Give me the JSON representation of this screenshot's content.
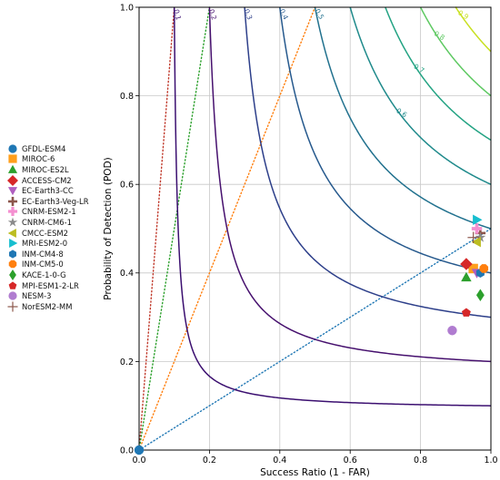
{
  "chart_data": {
    "type": "scatter",
    "title": "",
    "xlabel": "Success Ratio (1 - FAR)",
    "ylabel": "Probability of Detection (POD)",
    "xlim": [
      0.0,
      1.0
    ],
    "ylim": [
      0.0,
      1.0
    ],
    "xticks": [
      "0.0",
      "0.2",
      "0.4",
      "0.6",
      "0.8",
      "1.0"
    ],
    "yticks": [
      "0.0",
      "0.2",
      "0.4",
      "0.6",
      "0.8",
      "1.0"
    ],
    "grid": true,
    "legend_position": "left",
    "csi_contours": [
      {
        "level": 0.1,
        "label": "0.1",
        "color": "#3b0f70"
      },
      {
        "level": 0.2,
        "label": "0.2",
        "color": "#46106e"
      },
      {
        "level": 0.3,
        "label": "0.3",
        "color": "#2d3f8a"
      },
      {
        "level": 0.4,
        "label": "0.4",
        "color": "#26598d"
      },
      {
        "level": 0.5,
        "label": "0.5",
        "color": "#21718e"
      },
      {
        "level": 0.6,
        "label": "0.6",
        "color": "#1f8a8b"
      },
      {
        "level": 0.7,
        "label": "0.7",
        "color": "#23a383"
      },
      {
        "level": 0.8,
        "label": "0.8",
        "color": "#5ec962"
      },
      {
        "level": 0.9,
        "label": "0.9",
        "color": "#c8e020"
      }
    ],
    "bias_lines": [
      {
        "bias": 10,
        "color": "#c0392b"
      },
      {
        "bias": 5,
        "color": "#2ca02c"
      },
      {
        "bias": 2,
        "color": "#ff7f0e"
      },
      {
        "bias": 0.5,
        "color": "#1f77b4"
      }
    ],
    "series": [
      {
        "name": "GFDL-ESM4",
        "marker": "circle",
        "color": "#1f77b4",
        "x": 0.0,
        "y": 0.0
      },
      {
        "name": "MIROC-6",
        "marker": "square",
        "color": "#ff9f1c",
        "x": 0.95,
        "y": 0.41
      },
      {
        "name": "MIROC-ES2L",
        "marker": "triangle-up",
        "color": "#2ca02c",
        "x": 0.93,
        "y": 0.39
      },
      {
        "name": "ACCESS-CM2",
        "marker": "diamond",
        "color": "#d62728",
        "x": 0.93,
        "y": 0.42
      },
      {
        "name": "EC-Earth3-CC",
        "marker": "triangle-down",
        "color": "#b05fc0",
        "x": 0.96,
        "y": 0.4
      },
      {
        "name": "EC-Earth3-Veg-LR",
        "marker": "plus",
        "color": "#8c564b",
        "x": 0.97,
        "y": 0.49
      },
      {
        "name": "CNRM-ESM2-1",
        "marker": "plus-filled",
        "color": "#f48fd0",
        "x": 0.96,
        "y": 0.5
      },
      {
        "name": "CNRM-CM6-1",
        "marker": "star",
        "color": "#8a8a8a",
        "x": 0.97,
        "y": 0.48
      },
      {
        "name": "CMCC-ESM2",
        "marker": "triangle-left",
        "color": "#bcbd22",
        "x": 0.96,
        "y": 0.47
      },
      {
        "name": "MRI-ESM2-0",
        "marker": "triangle-right",
        "color": "#17becf",
        "x": 0.96,
        "y": 0.52
      },
      {
        "name": "INM-CM4-8",
        "marker": "hexagon",
        "color": "#1f77b4",
        "x": 0.97,
        "y": 0.4
      },
      {
        "name": "INM-CM5-0",
        "marker": "octagon",
        "color": "#ff7f0e",
        "x": 0.98,
        "y": 0.41
      },
      {
        "name": "KACE-1-0-G",
        "marker": "thin-diamond",
        "color": "#2ca02c",
        "x": 0.97,
        "y": 0.35
      },
      {
        "name": "MPI-ESM1-2-LR",
        "marker": "pentagon",
        "color": "#d62728",
        "x": 0.93,
        "y": 0.31
      },
      {
        "name": "NESM-3",
        "marker": "circle",
        "color": "#b07cd0",
        "x": 0.89,
        "y": 0.27
      },
      {
        "name": "NorESM2-MM",
        "marker": "plus-thin",
        "color": "#8c564b",
        "x": 0.95,
        "y": 0.48
      }
    ]
  }
}
